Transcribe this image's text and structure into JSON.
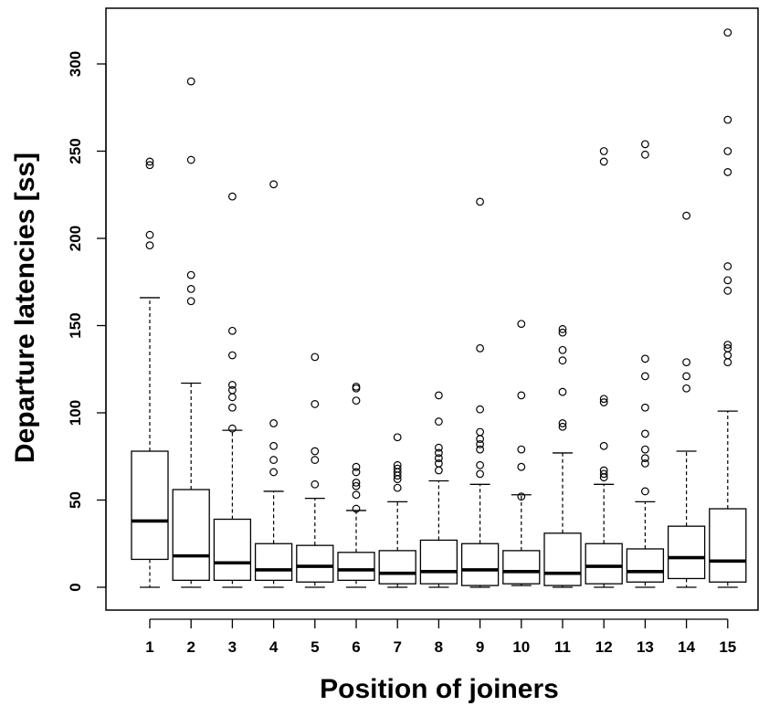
{
  "chart_data": {
    "type": "boxplot",
    "xlabel": "Position of joiners",
    "ylabel": "Departure latencies [ss]",
    "ylim": [
      -12,
      330
    ],
    "yticks": [
      0,
      50,
      100,
      150,
      200,
      250,
      300
    ],
    "categories": [
      "1",
      "2",
      "3",
      "4",
      "5",
      "6",
      "7",
      "8",
      "9",
      "10",
      "11",
      "12",
      "13",
      "14",
      "15"
    ],
    "grid": false,
    "legend": "none",
    "boxes": [
      {
        "min": 0,
        "q1": 16,
        "median": 38,
        "q3": 78,
        "max": 166,
        "outliers": [
          196,
          202,
          242,
          244
        ]
      },
      {
        "min": 0,
        "q1": 4,
        "median": 18,
        "q3": 56,
        "max": 117,
        "outliers": [
          164,
          171,
          179,
          245,
          290
        ]
      },
      {
        "min": 0,
        "q1": 4,
        "median": 14,
        "q3": 39,
        "max": 90,
        "outliers": [
          91,
          103,
          109,
          113,
          116,
          133,
          147,
          224
        ]
      },
      {
        "min": 0,
        "q1": 4,
        "median": 10,
        "q3": 25,
        "max": 55,
        "outliers": [
          66,
          73,
          81,
          94,
          231
        ]
      },
      {
        "min": 0,
        "q1": 3,
        "median": 12,
        "q3": 24,
        "max": 51,
        "outliers": [
          59,
          73,
          78,
          105,
          132
        ]
      },
      {
        "min": 0,
        "q1": 4,
        "median": 10,
        "q3": 20,
        "max": 44,
        "outliers": [
          45,
          53,
          58,
          60,
          66,
          69,
          107,
          114,
          115
        ]
      },
      {
        "min": 0,
        "q1": 2,
        "median": 8,
        "q3": 21,
        "max": 49,
        "outliers": [
          57,
          62,
          64,
          66,
          68,
          70,
          86
        ]
      },
      {
        "min": 0,
        "q1": 2,
        "median": 9,
        "q3": 27,
        "max": 61,
        "outliers": [
          67,
          71,
          74,
          77,
          80,
          95,
          110
        ]
      },
      {
        "min": 0,
        "q1": 1,
        "median": 10,
        "q3": 25,
        "max": 59,
        "outliers": [
          65,
          70,
          79,
          82,
          85,
          89,
          102,
          137,
          221
        ]
      },
      {
        "min": 1,
        "q1": 2,
        "median": 9,
        "q3": 21,
        "max": 53,
        "outliers": [
          52,
          69,
          79,
          110,
          151
        ]
      },
      {
        "min": 0,
        "q1": 1,
        "median": 8,
        "q3": 31,
        "max": 77,
        "outliers": [
          92,
          94,
          112,
          130,
          136,
          146,
          148
        ]
      },
      {
        "min": 0,
        "q1": 2,
        "median": 12,
        "q3": 25,
        "max": 59,
        "outliers": [
          63,
          65,
          67,
          81,
          106,
          108,
          244,
          250
        ]
      },
      {
        "min": 0,
        "q1": 3,
        "median": 9,
        "q3": 22,
        "max": 49,
        "outliers": [
          55,
          71,
          74,
          79,
          88,
          103,
          121,
          131,
          248,
          254
        ]
      },
      {
        "min": 0,
        "q1": 5,
        "median": 17,
        "q3": 35,
        "max": 78,
        "outliers": [
          114,
          121,
          129,
          213
        ]
      },
      {
        "min": 0,
        "q1": 3,
        "median": 15,
        "q3": 45,
        "max": 101,
        "outliers": [
          129,
          133,
          137,
          139,
          170,
          176,
          184,
          238,
          250,
          268,
          318
        ]
      }
    ]
  }
}
